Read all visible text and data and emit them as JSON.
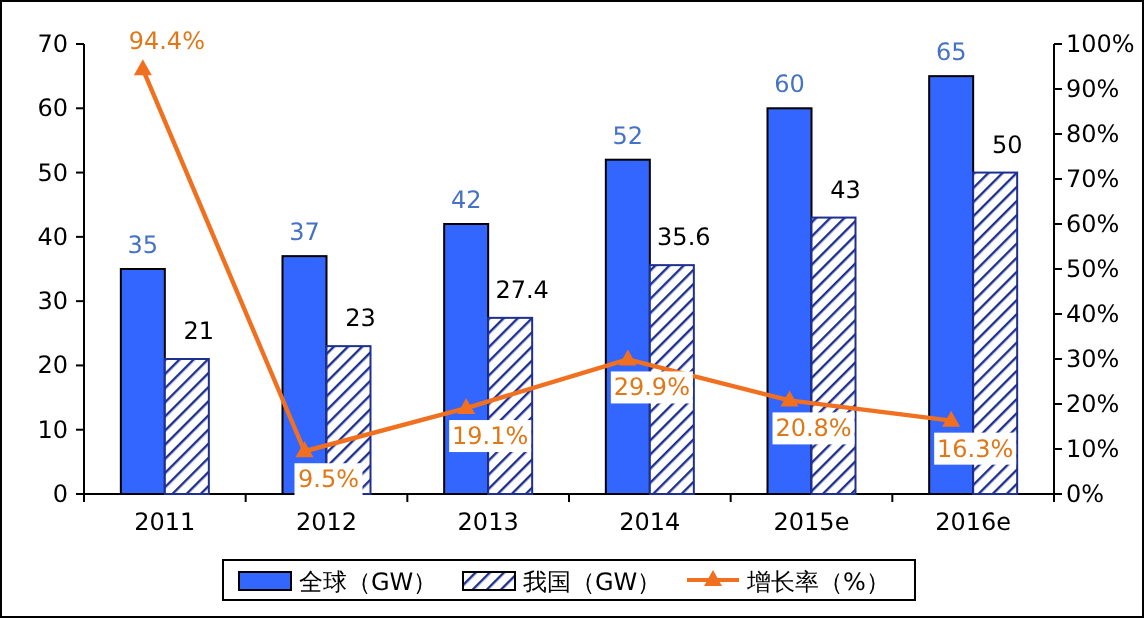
{
  "chart_data": {
    "type": "bar",
    "categories": [
      "2011",
      "2012",
      "2013",
      "2014",
      "2015e",
      "2016e"
    ],
    "series": [
      {
        "name": "全球（GW）",
        "color": "#3366ff",
        "values": [
          35,
          37,
          42,
          52,
          60,
          65
        ]
      },
      {
        "name": "我国（GW）",
        "color": "#1f2f8f",
        "values": [
          21,
          23,
          27.4,
          35.6,
          43,
          50
        ]
      },
      {
        "name": "增长率（%）",
        "type": "line",
        "axis": "y2",
        "color": "#f07020",
        "values": [
          94.4,
          9.5,
          19.1,
          29.9,
          20.8,
          16.3
        ],
        "value_labels": [
          "94.4%",
          "9.5%",
          "19.1%",
          "29.9%",
          "20.8%",
          "16.3%"
        ]
      }
    ],
    "ylim": [
      0,
      70
    ],
    "yticks": [
      0,
      10,
      20,
      30,
      40,
      50,
      60,
      70
    ],
    "y2lim": [
      0,
      100
    ],
    "y2ticks": [
      {
        "value": 0,
        "label": "0%"
      },
      {
        "value": 10,
        "label": "10%"
      },
      {
        "value": 20,
        "label": "20%"
      },
      {
        "value": 30,
        "label": "30%"
      },
      {
        "value": 40,
        "label": "40%"
      },
      {
        "value": 50,
        "label": "50%"
      },
      {
        "value": 60,
        "label": "60%"
      },
      {
        "value": 70,
        "label": "70%"
      },
      {
        "value": 80,
        "label": "80%"
      },
      {
        "value": 90,
        "label": "90%"
      },
      {
        "value": 100,
        "label": "100%"
      }
    ],
    "data_labels": true,
    "grid": false,
    "legend": "bottom",
    "marker": "triangle",
    "line_style": "solid"
  }
}
